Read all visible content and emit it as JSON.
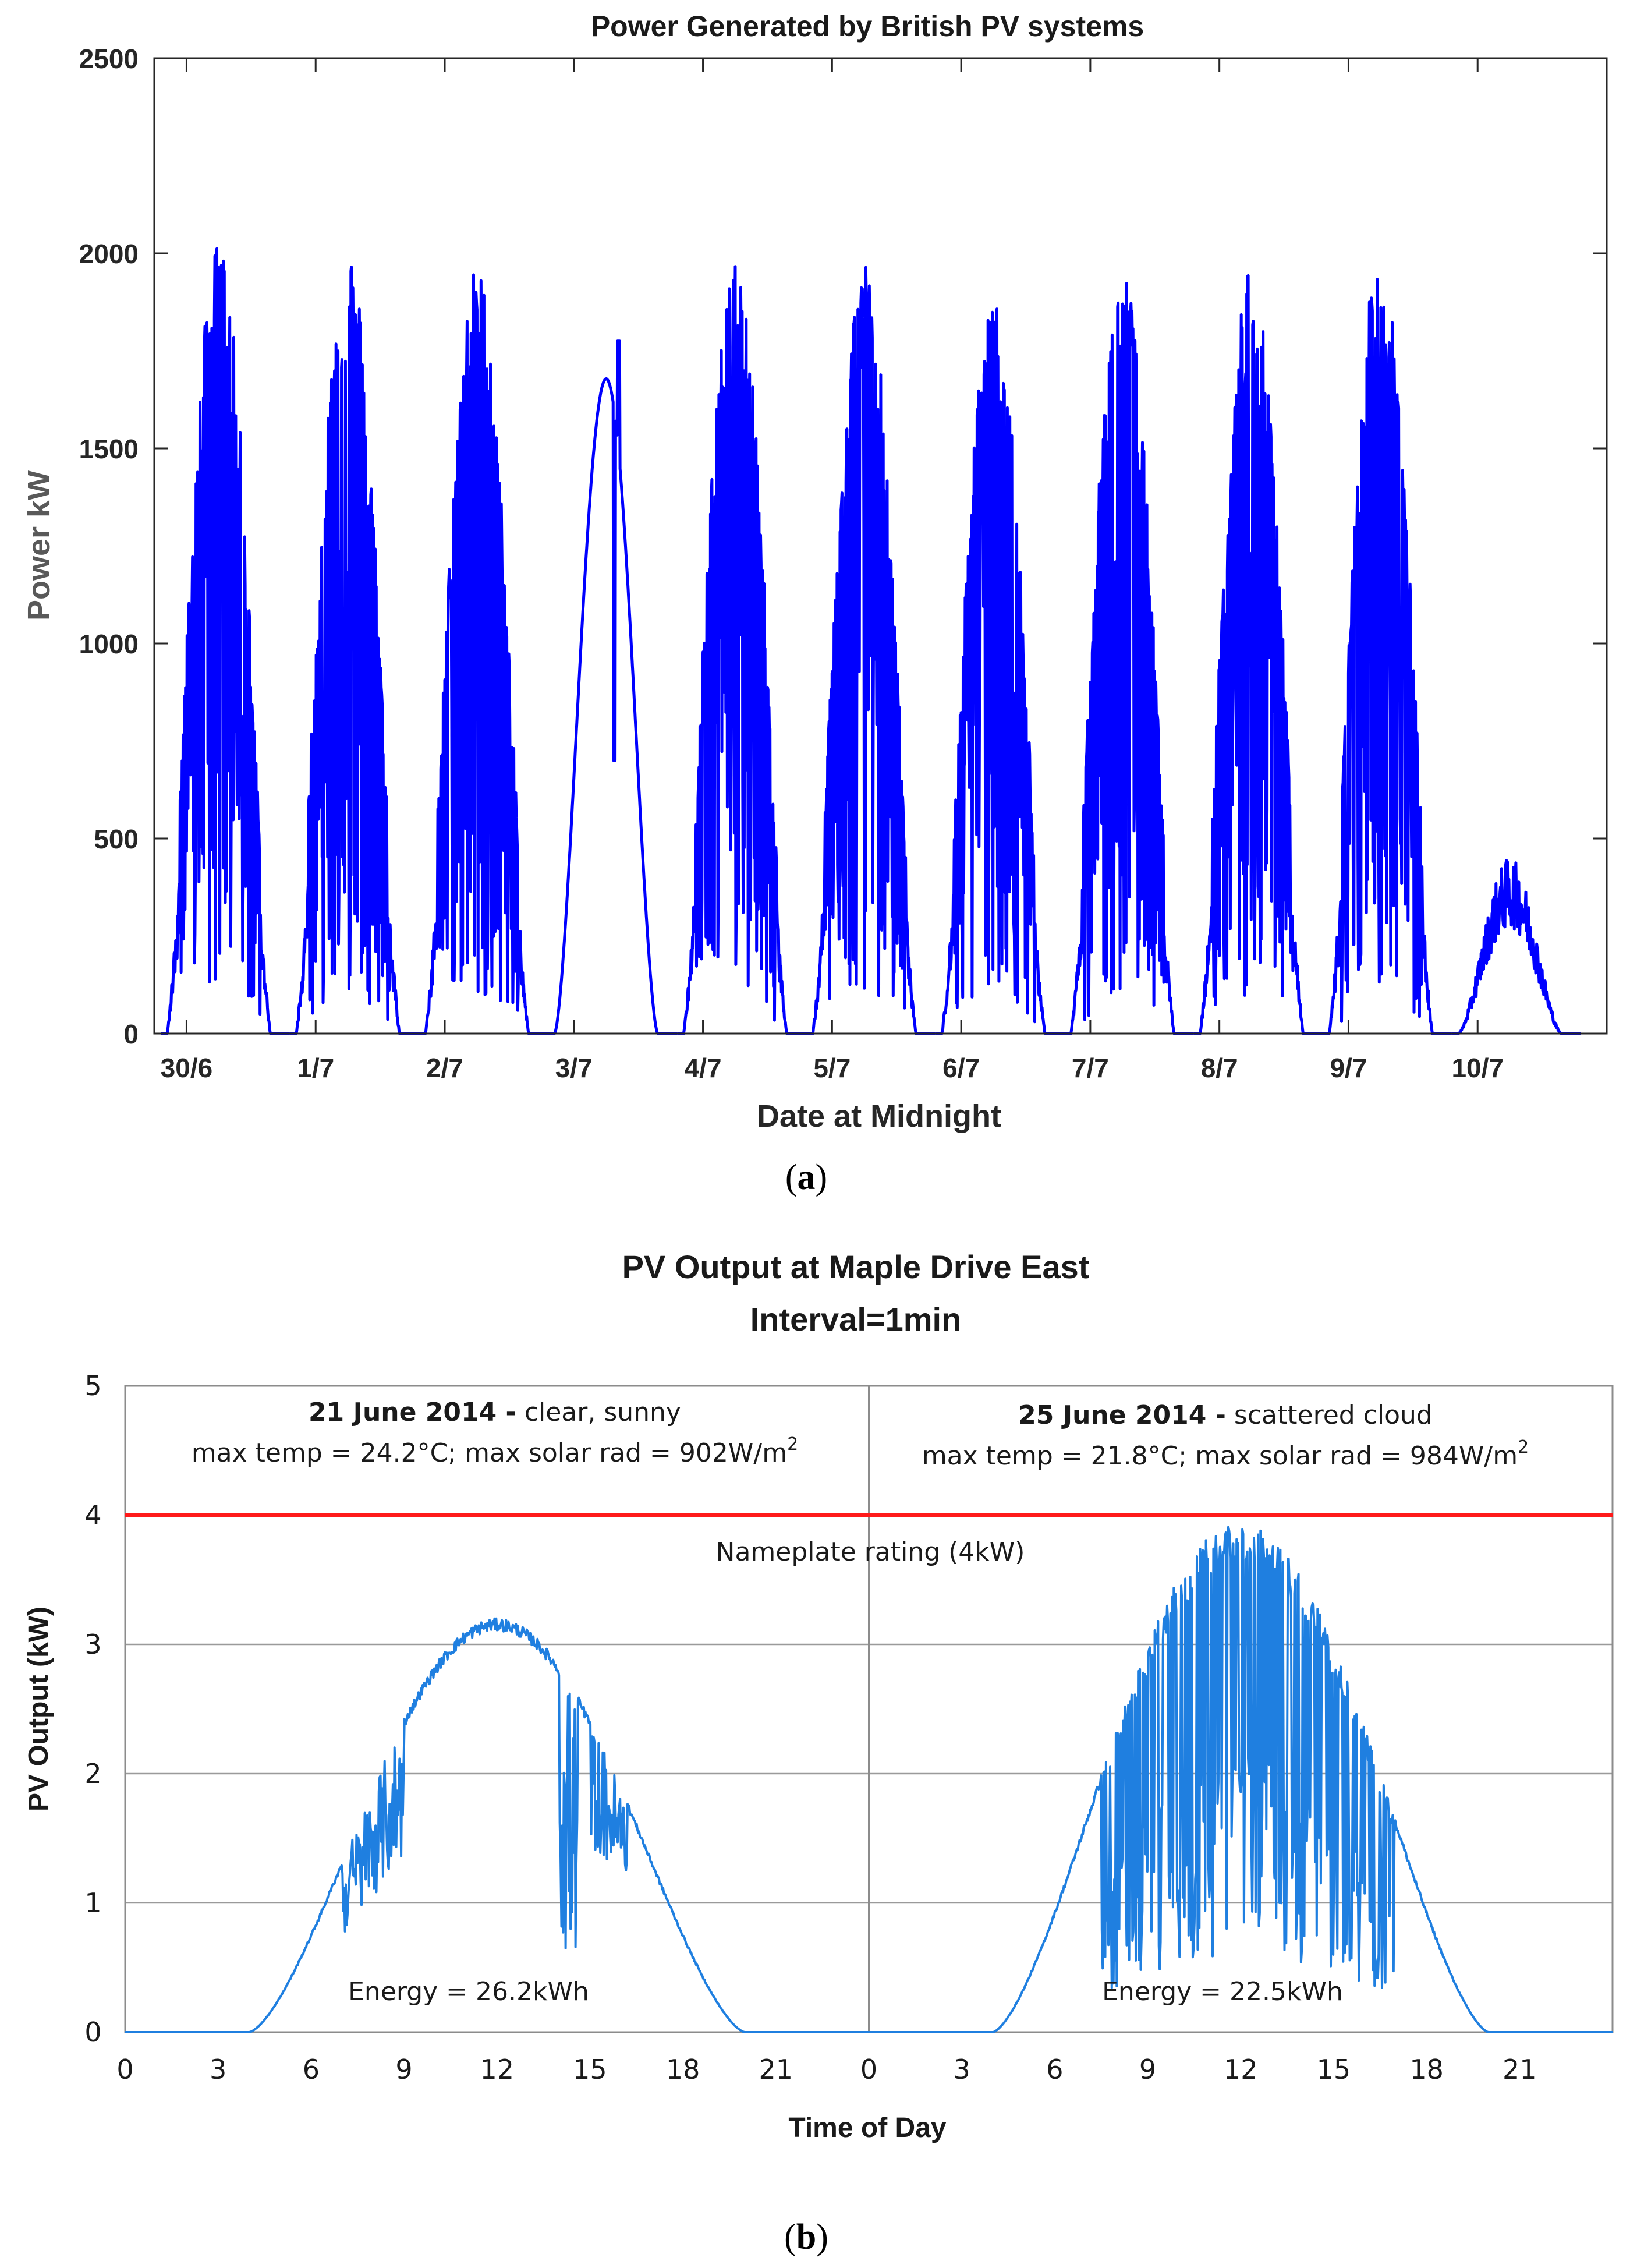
{
  "chart_data": [
    {
      "id": "a",
      "type": "line",
      "title": "Power Generated by British PV systems",
      "xlabel": "Date at Midnight",
      "ylabel": "Power kW",
      "x_tick_labels": [
        "30/6",
        "1/7",
        "2/7",
        "3/7",
        "4/7",
        "5/7",
        "6/7",
        "7/7",
        "8/7",
        "9/7",
        "10/7"
      ],
      "y_ticks": [
        0,
        500,
        1000,
        1500,
        2000,
        2500
      ],
      "ylim": [
        0,
        2500
      ],
      "xlim_days": [
        -0.25,
        11.0
      ],
      "grid": false,
      "color": "#0000ff",
      "daily_profiles": [
        {
          "day": "30/6",
          "peak": 2030,
          "variability": "high"
        },
        {
          "day": "1/7",
          "peak": 2025,
          "variability": "high"
        },
        {
          "day": "2/7",
          "peak": 1970,
          "variability": "high"
        },
        {
          "day": "3/7",
          "peak": 1680,
          "variability": "smooth",
          "spike": 1775,
          "dip": 700
        },
        {
          "day": "4/7",
          "peak": 1985,
          "variability": "high"
        },
        {
          "day": "5/7",
          "peak": 1985,
          "variability": "high"
        },
        {
          "day": "6/7",
          "peak": 1880,
          "variability": "high"
        },
        {
          "day": "7/7",
          "peak": 1965,
          "variability": "high"
        },
        {
          "day": "8/7",
          "peak": 1960,
          "variability": "high"
        },
        {
          "day": "9/7",
          "peak": 2020,
          "variability": "high"
        },
        {
          "day": "10/7",
          "peak": 450,
          "variability": "low"
        }
      ]
    },
    {
      "id": "b",
      "type": "line",
      "title_line1": "PV Output at Maple Drive East",
      "title_line2": "Interval=1min",
      "xlabel": "Time of Day",
      "ylabel": "PV Output (kW)",
      "x_tick_labels": [
        "0",
        "3",
        "6",
        "9",
        "12",
        "15",
        "18",
        "21",
        "0",
        "3",
        "6",
        "9",
        "12",
        "15",
        "18",
        "21"
      ],
      "y_ticks": [
        0,
        1,
        2,
        3,
        4,
        5
      ],
      "ylim": [
        0,
        5
      ],
      "xlim_hours": [
        0,
        48
      ],
      "grid": true,
      "color": "#1f7fe0",
      "nameplate": {
        "value": 4,
        "label": "Nameplate rating (4kW)",
        "color": "#ff1a1a"
      },
      "panels": [
        {
          "date_bold": "21 June 2014 -",
          "desc": " clear, sunny",
          "line2_pre": "max temp = 24.2°C; max solar rad = 902W/m",
          "sup": "2",
          "energy": "Energy = 26.2kWh",
          "sunrise_h": 4.0,
          "sunset_h": 20.0,
          "peak_kw": 3.2
        },
        {
          "date_bold": "25 June 2014 -",
          "desc": " scattered cloud",
          "line2_pre": "max temp = 21.8°C; max solar rad = 984W/m",
          "sup": "2",
          "energy": "Energy = 22.5kWh",
          "sunrise_h": 4.0,
          "sunset_h": 20.0,
          "peak_kw": 3.95
        }
      ]
    }
  ],
  "captions": {
    "a": "a",
    "b": "b"
  }
}
